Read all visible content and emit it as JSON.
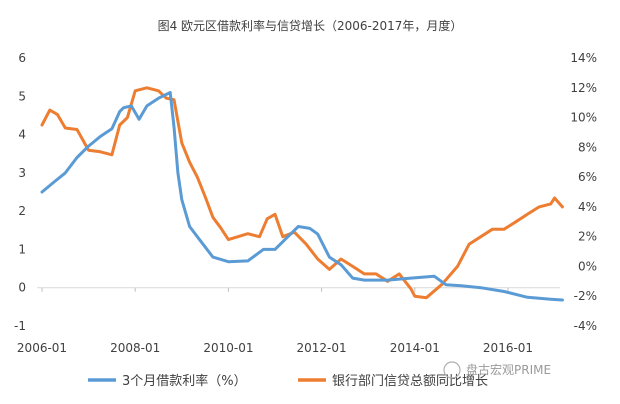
{
  "chart_data": {
    "type": "line",
    "title": "图4 欧元区借款利率与信贷增长（2006-2017年，月度）",
    "x_ticks": [
      "2006-01",
      "2008-01",
      "2010-01",
      "2012-01",
      "2014-01",
      "2016-01"
    ],
    "y_left": {
      "ticks": [
        "-1",
        "0",
        "1",
        "2",
        "3",
        "4",
        "5",
        "6"
      ],
      "ylim": [
        -1,
        6
      ]
    },
    "y_right": {
      "ticks": [
        "-4%",
        "-2%",
        "0%",
        "2%",
        "4%",
        "6%",
        "8%",
        "10%",
        "12%",
        "14%"
      ],
      "ylim": [
        -4,
        14
      ]
    },
    "grid": false,
    "legend_position": "bottom",
    "series": [
      {
        "name": "3个月借款利率（%）",
        "axis": "left",
        "color": "#5b9bd5",
        "points": [
          [
            "2006-01",
            2.5
          ],
          [
            "2006-04",
            2.75
          ],
          [
            "2006-07",
            3.0
          ],
          [
            "2006-10",
            3.4
          ],
          [
            "2007-01",
            3.7
          ],
          [
            "2007-04",
            3.95
          ],
          [
            "2007-07",
            4.15
          ],
          [
            "2007-09",
            4.6
          ],
          [
            "2007-10",
            4.7
          ],
          [
            "2007-12",
            4.75
          ],
          [
            "2008-02",
            4.4
          ],
          [
            "2008-04",
            4.75
          ],
          [
            "2008-07",
            4.95
          ],
          [
            "2008-10",
            5.1
          ],
          [
            "2008-11",
            4.2
          ],
          [
            "2008-12",
            3.0
          ],
          [
            "2009-01",
            2.3
          ],
          [
            "2009-03",
            1.6
          ],
          [
            "2009-06",
            1.2
          ],
          [
            "2009-09",
            0.8
          ],
          [
            "2010-01",
            0.68
          ],
          [
            "2010-06",
            0.7
          ],
          [
            "2010-10",
            1.0
          ],
          [
            "2011-01",
            1.0
          ],
          [
            "2011-04",
            1.3
          ],
          [
            "2011-07",
            1.6
          ],
          [
            "2011-10",
            1.55
          ],
          [
            "2011-12",
            1.4
          ],
          [
            "2012-03",
            0.8
          ],
          [
            "2012-06",
            0.6
          ],
          [
            "2012-09",
            0.25
          ],
          [
            "2012-12",
            0.2
          ],
          [
            "2013-06",
            0.2
          ],
          [
            "2013-12",
            0.25
          ],
          [
            "2014-06",
            0.3
          ],
          [
            "2014-09",
            0.08
          ],
          [
            "2015-01",
            0.05
          ],
          [
            "2015-06",
            0.0
          ],
          [
            "2015-12",
            -0.1
          ],
          [
            "2016-06",
            -0.25
          ],
          [
            "2016-12",
            -0.3
          ],
          [
            "2017-03",
            -0.32
          ]
        ]
      },
      {
        "name": "银行部门信贷总额同比增长",
        "axis": "right",
        "color": "#ed7d31",
        "points": [
          [
            "2006-01",
            9.5
          ],
          [
            "2006-03",
            10.5
          ],
          [
            "2006-05",
            10.2
          ],
          [
            "2006-07",
            9.3
          ],
          [
            "2006-10",
            9.2
          ],
          [
            "2007-01",
            7.8
          ],
          [
            "2007-04",
            7.7
          ],
          [
            "2007-07",
            7.5
          ],
          [
            "2007-09",
            9.5
          ],
          [
            "2007-11",
            10.0
          ],
          [
            "2008-01",
            11.8
          ],
          [
            "2008-04",
            12.0
          ],
          [
            "2008-07",
            11.8
          ],
          [
            "2008-09",
            11.3
          ],
          [
            "2008-11",
            11.2
          ],
          [
            "2009-01",
            8.3
          ],
          [
            "2009-03",
            7.0
          ],
          [
            "2009-05",
            6.0
          ],
          [
            "2009-07",
            4.7
          ],
          [
            "2009-09",
            3.3
          ],
          [
            "2009-11",
            2.6
          ],
          [
            "2010-01",
            1.8
          ],
          [
            "2010-06",
            2.2
          ],
          [
            "2010-09",
            2.0
          ],
          [
            "2010-11",
            3.2
          ],
          [
            "2011-01",
            3.5
          ],
          [
            "2011-03",
            2.0
          ],
          [
            "2011-06",
            2.3
          ],
          [
            "2011-09",
            1.5
          ],
          [
            "2011-12",
            0.5
          ],
          [
            "2012-03",
            -0.2
          ],
          [
            "2012-06",
            0.5
          ],
          [
            "2012-09",
            0.0
          ],
          [
            "2012-12",
            -0.5
          ],
          [
            "2013-03",
            -0.5
          ],
          [
            "2013-06",
            -1.0
          ],
          [
            "2013-09",
            -0.5
          ],
          [
            "2013-12",
            -1.5
          ],
          [
            "2014-01",
            -2.0
          ],
          [
            "2014-04",
            -2.1
          ],
          [
            "2014-08",
            -1.2
          ],
          [
            "2014-12",
            0.0
          ],
          [
            "2015-03",
            1.5
          ],
          [
            "2015-06",
            2.0
          ],
          [
            "2015-09",
            2.5
          ],
          [
            "2015-12",
            2.5
          ],
          [
            "2016-03",
            3.0
          ],
          [
            "2016-06",
            3.5
          ],
          [
            "2016-09",
            4.0
          ],
          [
            "2016-12",
            4.2
          ],
          [
            "2017-01",
            4.6
          ],
          [
            "2017-03",
            4.0
          ]
        ]
      }
    ]
  },
  "watermark": "盘古宏观PRIME"
}
